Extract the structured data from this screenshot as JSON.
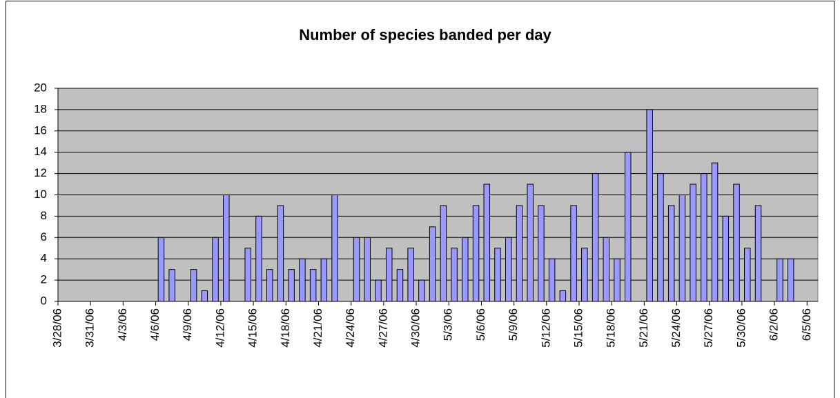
{
  "chart_data": {
    "type": "bar",
    "title": "Number of species banded per day",
    "categories": [
      "3/28/06",
      null,
      null,
      "3/31/06",
      null,
      null,
      "4/3/06",
      null,
      null,
      "4/6/06",
      null,
      null,
      "4/9/06",
      null,
      null,
      "4/12/06",
      null,
      null,
      "4/15/06",
      null,
      null,
      "4/18/06",
      null,
      null,
      "4/21/06",
      null,
      null,
      "4/24/06",
      null,
      null,
      "4/27/06",
      null,
      null,
      "4/30/06",
      null,
      null,
      "5/3/06",
      null,
      null,
      "5/6/06",
      null,
      null,
      "5/9/06",
      null,
      null,
      "5/12/06",
      null,
      null,
      "5/15/06",
      null,
      null,
      "5/18/06",
      null,
      null,
      "5/21/06",
      null,
      null,
      "5/24/06",
      null,
      null,
      "5/27/06",
      null,
      null,
      "5/30/06",
      null,
      null,
      "6/2/06",
      null,
      null,
      "6/5/06"
    ],
    "values": [
      null,
      null,
      null,
      null,
      null,
      null,
      null,
      null,
      null,
      6,
      3,
      null,
      3,
      1,
      6,
      10,
      null,
      5,
      8,
      3,
      9,
      3,
      4,
      3,
      4,
      10,
      null,
      6,
      6,
      2,
      5,
      3,
      5,
      2,
      7,
      9,
      5,
      6,
      9,
      11,
      5,
      6,
      9,
      11,
      9,
      4,
      1,
      9,
      5,
      12,
      6,
      4,
      14,
      null,
      18,
      12,
      9,
      10,
      11,
      12,
      13,
      8,
      11,
      5,
      9,
      null,
      4,
      4,
      null,
      null
    ],
    "color": "#9999ff",
    "plot_background": "#c0c0c0",
    "ylim": [
      0,
      20
    ],
    "yticks": [
      0,
      2,
      4,
      6,
      8,
      10,
      12,
      14,
      16,
      18,
      20
    ],
    "grid": true
  }
}
